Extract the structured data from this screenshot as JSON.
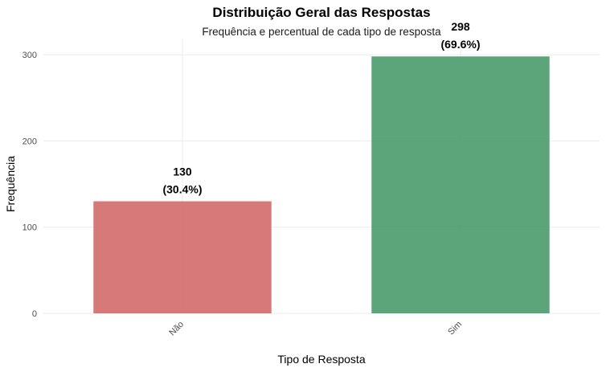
{
  "chart_data": {
    "type": "bar",
    "title": "Distribuição Geral das Respostas",
    "subtitle": "Frequência e percentual de cada tipo de resposta",
    "xlabel": "Tipo de Resposta",
    "ylabel": "Frequência",
    "categories": [
      "Não",
      "Sim"
    ],
    "values": [
      130,
      298
    ],
    "labels": [
      {
        "count": "130",
        "percent": "(30.4%)"
      },
      {
        "count": "298",
        "percent": "(69.6%)"
      }
    ],
    "colors": [
      "#d46a6a",
      "#4a9a6c"
    ],
    "ylim": [
      0,
      318
    ],
    "yticks": [
      0,
      100,
      200,
      300
    ],
    "grid": true,
    "legend": "none"
  }
}
